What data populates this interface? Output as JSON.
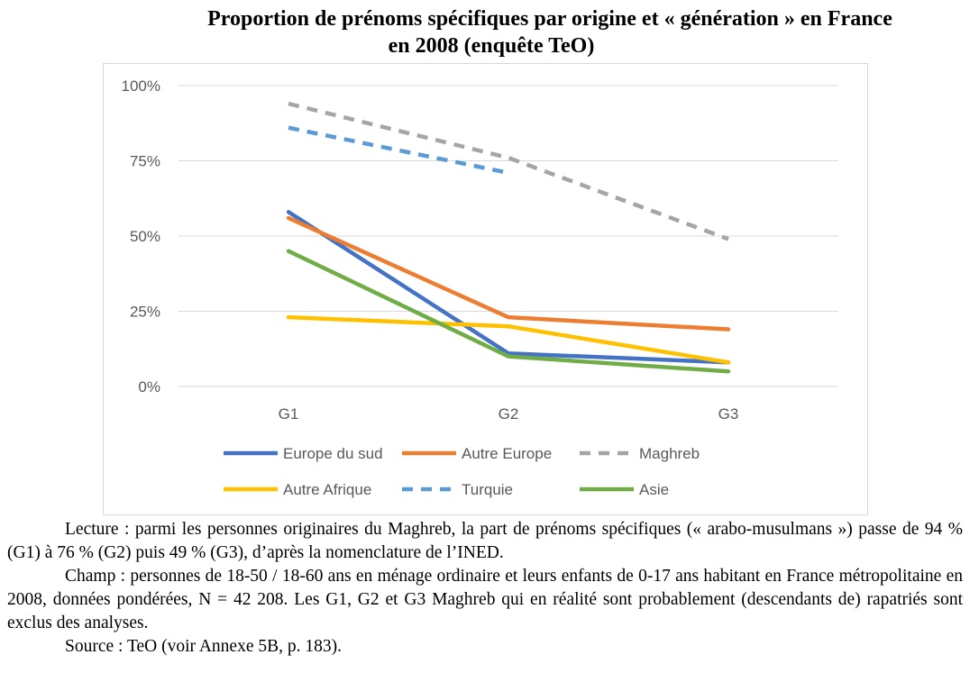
{
  "chart_data": {
    "type": "line",
    "title_line1": "Proportion de prénoms spécifiques par origine et « génération » en France",
    "title_line2": "en 2008 (enquête TeO)",
    "categories": [
      "G1",
      "G2",
      "G3"
    ],
    "y_ticks": [
      "0%",
      "25%",
      "50%",
      "75%",
      "100%"
    ],
    "ylim": [
      0,
      100
    ],
    "grid": true,
    "legend_position": "bottom",
    "series": [
      {
        "name": "Europe du sud",
        "values": [
          58,
          11,
          8
        ],
        "color": "#4472C4",
        "dashed": false
      },
      {
        "name": "Autre Europe",
        "values": [
          56,
          23,
          19
        ],
        "color": "#ED7D31",
        "dashed": false
      },
      {
        "name": "Maghreb",
        "values": [
          94,
          76,
          49
        ],
        "color": "#A5A5A5",
        "dashed": true
      },
      {
        "name": "Autre Afrique",
        "values": [
          23,
          20,
          8
        ],
        "color": "#FFC000",
        "dashed": false
      },
      {
        "name": "Turquie",
        "values": [
          86,
          71,
          null
        ],
        "color": "#5B9BD5",
        "dashed": true
      },
      {
        "name": "Asie",
        "values": [
          45,
          10,
          5
        ],
        "color": "#70AD47",
        "dashed": false
      }
    ]
  },
  "notes": {
    "lecture": "Lecture : parmi les personnes originaires du Maghreb, la part de prénoms spécifiques (« arabo-musulmans ») passe de 94 % (G1) à 76 % (G2) puis 49 % (G3), d’après la nomenclature de l’INED.",
    "champ": "Champ : personnes de 18-50 / 18-60 ans en ménage ordinaire et leurs enfants de 0-17 ans habitant en France métropolitaine en 2008, données pondérées, N = 42 208. Les G1, G2 et G3 Maghreb qui en réalité sont probablement (descendants de) rapatriés sont exclus des analyses.",
    "source": "Source : TeO (voir Annexe 5B, p. 183)."
  }
}
